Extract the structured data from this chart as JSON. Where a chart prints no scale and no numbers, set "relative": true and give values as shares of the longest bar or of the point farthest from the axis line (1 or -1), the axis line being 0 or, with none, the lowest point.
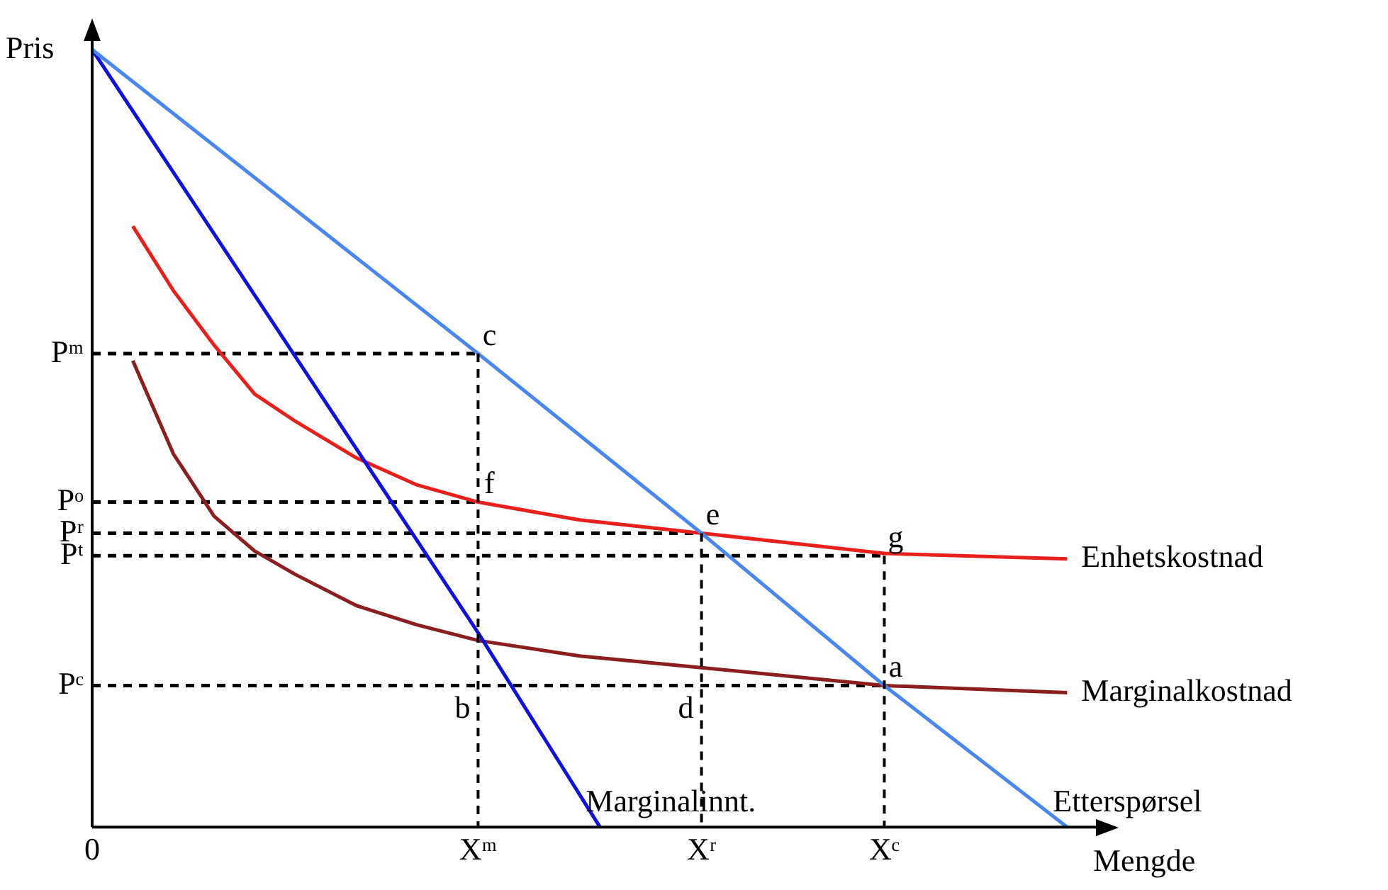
{
  "chart_data": {
    "type": "line",
    "relative": true,
    "ylabel": "Pris",
    "xlabel": "Mengde",
    "tick_labels": "x",
    "legend": false,
    "marker": "none",
    "categories": [
      "0",
      null,
      null,
      null,
      null,
      null,
      null,
      null,
      null,
      null,
      null,
      null,
      null,
      null,
      null,
      null,
      null,
      null,
      null,
      "Xᵐ",
      null,
      null,
      null,
      null,
      null,
      null,
      null,
      null,
      null,
      null,
      "Xʳ",
      null,
      null,
      null,
      null,
      null,
      null,
      null,
      null,
      "Xᶜ",
      null,
      null,
      null,
      null,
      null,
      null,
      null,
      null,
      null,
      null
    ],
    "series": [
      {
        "name": "Etterspørsel",
        "color": "#4a86f0",
        "values": [
          1,
          null,
          null,
          null,
          null,
          null,
          null,
          null,
          null,
          null,
          null,
          null,
          null,
          null,
          null,
          null,
          null,
          null,
          null,
          0.609,
          null,
          null,
          null,
          null,
          null,
          null,
          null,
          null,
          null,
          null,
          0.378,
          null,
          null,
          null,
          null,
          null,
          null,
          null,
          null,
          0.182,
          null,
          null,
          null,
          null,
          null,
          null,
          null,
          null,
          0,
          null
        ]
      },
      {
        "name": "Marginalinnt.",
        "color": "#1010e0",
        "values": [
          1,
          null,
          null,
          null,
          null,
          null,
          null,
          null,
          null,
          null,
          null,
          null,
          null,
          null,
          null,
          null,
          null,
          null,
          null,
          0.25,
          null,
          null,
          null,
          null,
          null,
          0,
          null,
          null,
          null,
          null,
          null,
          null,
          null,
          null,
          null,
          null,
          null,
          null,
          null,
          null,
          null,
          null,
          null,
          null,
          null,
          null,
          null,
          null,
          null,
          null
        ]
      },
      {
        "name": "Enhetskostnad",
        "color": "#e8201c",
        "values": [
          null,
          null,
          0.773,
          null,
          0.69,
          null,
          0.62,
          null,
          0.557,
          null,
          0.522,
          null,
          null,
          0.475,
          null,
          null,
          0.44,
          null,
          null,
          0.418,
          null,
          null,
          null,
          null,
          0.395,
          null,
          null,
          null,
          null,
          null,
          0.378,
          null,
          null,
          null,
          null,
          null,
          null,
          null,
          null,
          0.352,
          null,
          null,
          null,
          null,
          null,
          null,
          null,
          null,
          0.345,
          null
        ]
      },
      {
        "name": "Marginalkostnad",
        "color": "#8b1f1f",
        "values": [
          null,
          null,
          0.6,
          null,
          0.48,
          null,
          0.4,
          null,
          0.355,
          null,
          0.325,
          null,
          null,
          0.285,
          null,
          null,
          0.26,
          null,
          null,
          0.24,
          null,
          null,
          null,
          null,
          0.22,
          null,
          null,
          null,
          null,
          null,
          0.205,
          null,
          null,
          null,
          null,
          null,
          null,
          null,
          null,
          0.182,
          null,
          null,
          null,
          null,
          null,
          null,
          null,
          null,
          0.173,
          null
        ]
      },
      {
        "color": "#000000",
        "line_style": "dashed",
        "values": [
          0.609,
          null,
          null,
          null,
          null,
          null,
          null,
          null,
          null,
          null,
          null,
          null,
          null,
          null,
          null,
          null,
          null,
          null,
          null,
          0.609,
          null,
          null,
          null,
          null,
          null,
          null,
          null,
          null,
          null,
          null,
          null,
          null,
          null,
          null,
          null,
          null,
          null,
          null,
          null,
          null,
          null,
          null,
          null,
          null,
          null,
          null,
          null,
          null,
          null,
          null
        ]
      },
      {
        "color": "#000000",
        "line_style": "dashed",
        "values": [
          0.418,
          null,
          null,
          null,
          null,
          null,
          null,
          null,
          null,
          null,
          null,
          null,
          null,
          null,
          null,
          null,
          null,
          null,
          null,
          0.418,
          null,
          null,
          null,
          null,
          null,
          null,
          null,
          null,
          null,
          null,
          null,
          null,
          null,
          null,
          null,
          null,
          null,
          null,
          null,
          null,
          null,
          null,
          null,
          null,
          null,
          null,
          null,
          null,
          null,
          null
        ]
      },
      {
        "color": "#000000",
        "line_style": "dashed",
        "values": [
          0.378,
          null,
          null,
          null,
          null,
          null,
          null,
          null,
          null,
          null,
          null,
          null,
          null,
          null,
          null,
          null,
          null,
          null,
          null,
          null,
          null,
          null,
          null,
          null,
          null,
          null,
          null,
          null,
          null,
          null,
          0.378,
          null,
          null,
          null,
          null,
          null,
          null,
          null,
          null,
          null,
          null,
          null,
          null,
          null,
          null,
          null,
          null,
          null,
          null,
          null
        ]
      },
      {
        "color": "#000000",
        "line_style": "dashed",
        "values": [
          0.349,
          null,
          null,
          null,
          null,
          null,
          null,
          null,
          null,
          null,
          null,
          null,
          null,
          null,
          null,
          null,
          null,
          null,
          null,
          null,
          null,
          null,
          null,
          null,
          null,
          null,
          null,
          null,
          null,
          null,
          null,
          null,
          null,
          null,
          null,
          null,
          null,
          null,
          null,
          0.349,
          null,
          null,
          null,
          null,
          null,
          null,
          null,
          null,
          null,
          null
        ]
      },
      {
        "color": "#000000",
        "line_style": "dashed",
        "values": [
          0.182,
          null,
          null,
          null,
          null,
          null,
          null,
          null,
          null,
          null,
          null,
          null,
          null,
          null,
          null,
          null,
          null,
          null,
          null,
          null,
          null,
          null,
          null,
          null,
          null,
          null,
          null,
          null,
          null,
          null,
          null,
          null,
          null,
          null,
          null,
          null,
          null,
          null,
          null,
          0.182,
          null,
          null,
          null,
          null,
          null,
          null,
          null,
          null,
          null,
          null
        ]
      }
    ],
    "annotations": [
      {
        "text": "Pᵐ",
        "x": "0",
        "y": 0.609
      },
      {
        "text": "Pᵒ",
        "x": "0",
        "y": 0.418
      },
      {
        "text": "Pʳ",
        "x": "0",
        "y": 0.378
      },
      {
        "text": "Pᵗ",
        "x": "0",
        "y": 0.349
      },
      {
        "text": "Pᶜ",
        "x": "0",
        "y": 0.182
      },
      {
        "text": "c",
        "x": "Xᵐ",
        "y": 0.609
      },
      {
        "text": "f",
        "x": "Xᵐ",
        "y": 0.418
      },
      {
        "text": "e",
        "x": "Xʳ",
        "y": 0.378
      },
      {
        "text": "g",
        "x": "Xᶜ",
        "y": 0.349
      },
      {
        "text": "a",
        "x": "Xᶜ",
        "y": 0.182
      },
      {
        "text": "b",
        "x": "Xᵐ",
        "y": 0.182
      },
      {
        "text": "d",
        "x": "Xʳ",
        "y": 0.182
      }
    ]
  }
}
